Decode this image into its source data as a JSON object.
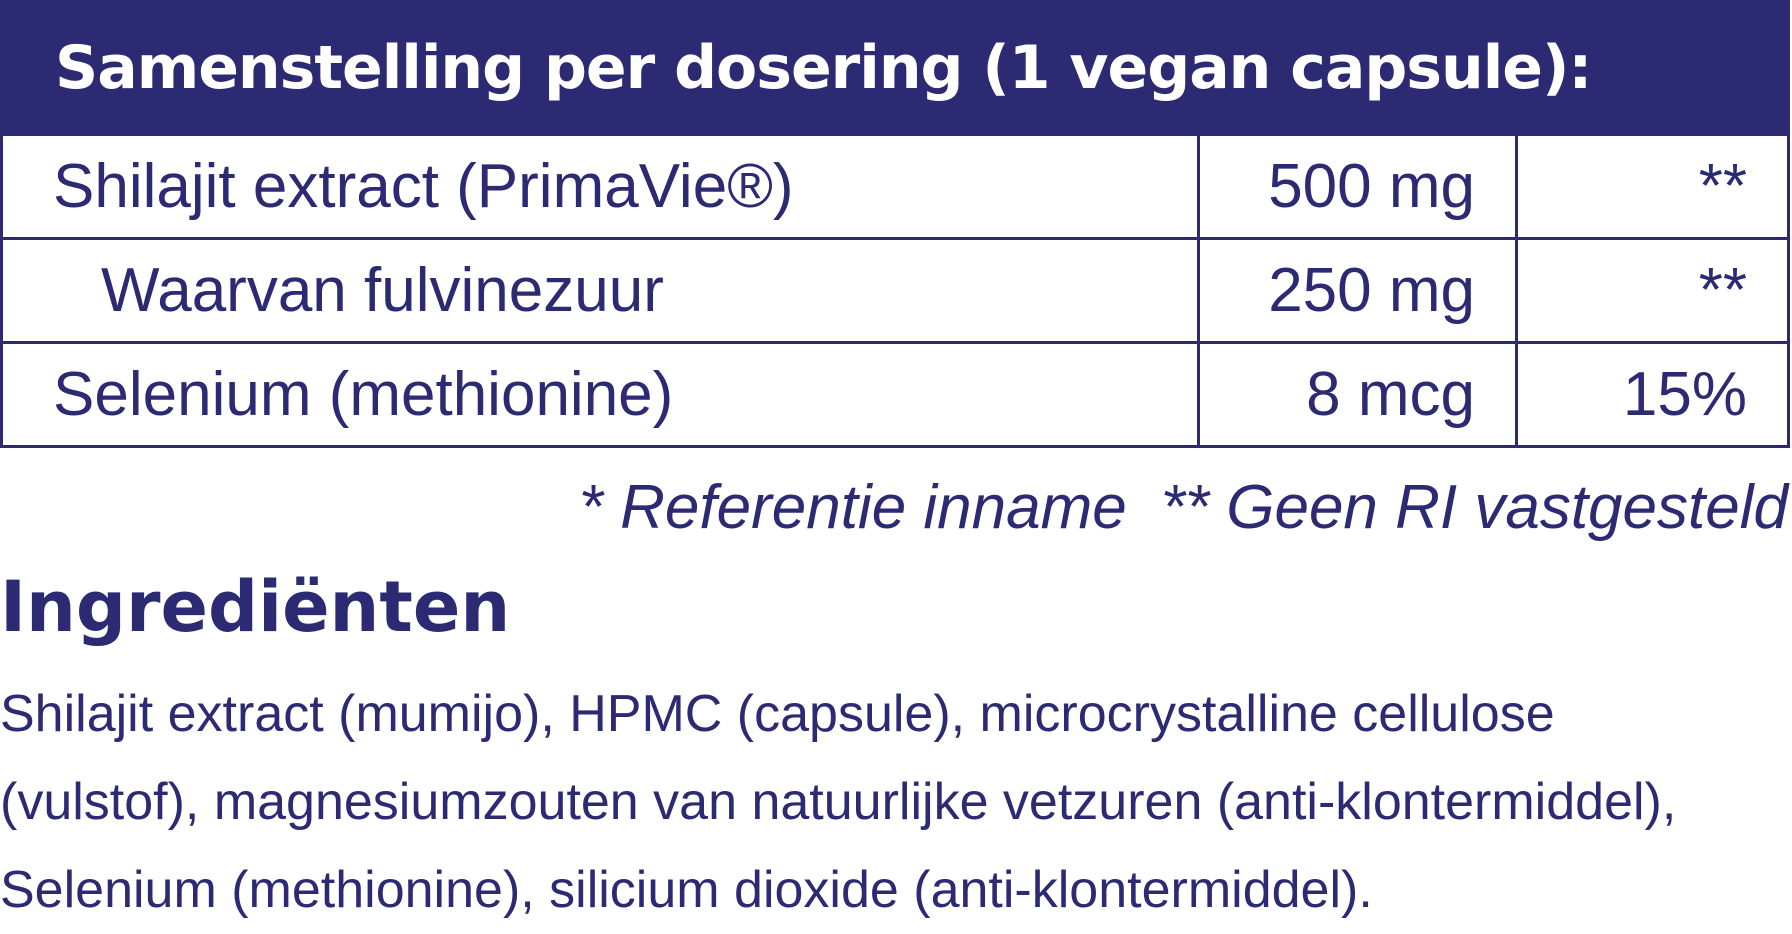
{
  "table": {
    "header": "Samenstelling per dosering (1 vegan capsule):",
    "rows": [
      {
        "name": "Shilajit extract (PrimaVie®)",
        "amount": "500 mg",
        "ri": "**"
      },
      {
        "name": "Waarvan fulvinezuur",
        "amount": "250 mg",
        "ri": "**"
      },
      {
        "name": "Selenium (methionine)",
        "amount": "8 mcg",
        "ri": "15%"
      }
    ]
  },
  "footnote": {
    "ri_note": "* Referentie inname",
    "no_ri_note": "** Geen RI vastgesteld"
  },
  "ingredients": {
    "title": "Ingrediënten",
    "lines": [
      "Shilajit extract (mumijo), HPMC (capsule), microcrystalline cellulose",
      "(vulstof), magnesiumzouten van natuurlijke vetzuren (anti-klontermiddel),",
      "Selenium (methionine), silicium dioxide (anti-klontermiddel)."
    ]
  },
  "colors": {
    "primary": "#2b2a73",
    "background": "#ffffff"
  }
}
